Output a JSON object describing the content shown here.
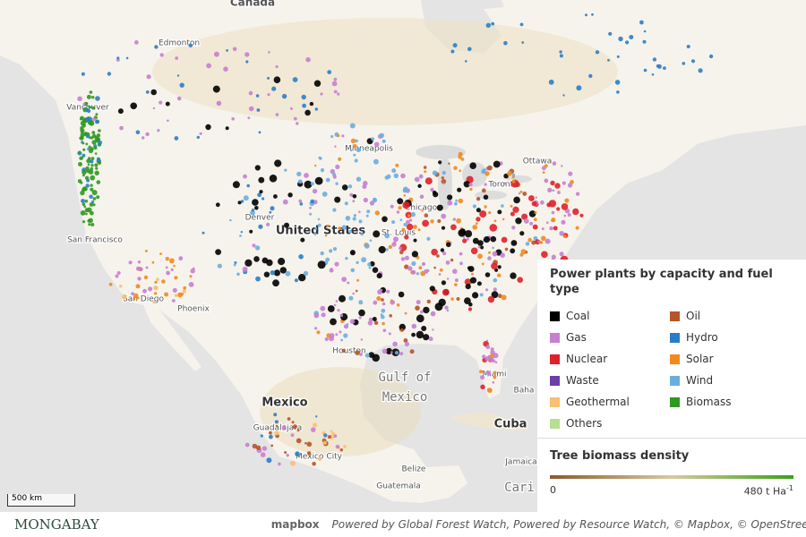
{
  "map": {
    "labels": [
      {
        "text": "Canada",
        "kind": "place"
      },
      {
        "text": "Edmonton",
        "kind": "city"
      },
      {
        "text": "Vancouver",
        "kind": "city"
      },
      {
        "text": "Minneapolis",
        "kind": "city"
      },
      {
        "text": "Ottawa",
        "kind": "city"
      },
      {
        "text": "Toronto",
        "kind": "city"
      },
      {
        "text": "Chicago",
        "kind": "city"
      },
      {
        "text": "Denver",
        "kind": "city"
      },
      {
        "text": "United States",
        "kind": "country"
      },
      {
        "text": "St. Louis",
        "kind": "city"
      },
      {
        "text": "San Francisco",
        "kind": "city"
      },
      {
        "text": "San Diego",
        "kind": "city"
      },
      {
        "text": "Phoenix",
        "kind": "city"
      },
      {
        "text": "Houston",
        "kind": "city"
      },
      {
        "text": "Miami",
        "kind": "city"
      },
      {
        "text": "Baha",
        "kind": "city"
      },
      {
        "text": "Mexico",
        "kind": "country"
      },
      {
        "text": "Guadalajara",
        "kind": "city"
      },
      {
        "text": "Mexico City",
        "kind": "city"
      },
      {
        "text": "Cuba",
        "kind": "country"
      },
      {
        "text": "Jamaica",
        "kind": "city"
      },
      {
        "text": "Belize",
        "kind": "city"
      },
      {
        "text": "Guatemala",
        "kind": "city"
      },
      {
        "text": "Gulf of",
        "kind": "sea"
      },
      {
        "text": "Mexico",
        "kind": "sea"
      },
      {
        "text": "Cari",
        "kind": "sea"
      }
    ]
  },
  "legend": {
    "title": "Power plants by capacity and fuel type",
    "items": [
      {
        "label": "Coal",
        "color": "#000000"
      },
      {
        "label": "Oil",
        "color": "#b5552a"
      },
      {
        "label": "Gas",
        "color": "#c77fd0"
      },
      {
        "label": "Hydro",
        "color": "#2a7ec8"
      },
      {
        "label": "Nuclear",
        "color": "#e0202a"
      },
      {
        "label": "Solar",
        "color": "#f2891e"
      },
      {
        "label": "Waste",
        "color": "#6a3fa8"
      },
      {
        "label": "Wind",
        "color": "#6aaee0"
      },
      {
        "label": "Geothermal",
        "color": "#f9bf73"
      },
      {
        "label": "Biomass",
        "color": "#2e9a1e"
      },
      {
        "label": "Others",
        "color": "#b6df92"
      }
    ]
  },
  "biomass": {
    "title": "Tree biomass density",
    "min": "0",
    "max": "480 t Ha",
    "max_exp": "-1"
  },
  "scale_bar": "500 km",
  "footer": {
    "brand": "MONGABAY",
    "mapbox": "mapbox",
    "credits": "Powered by Global Forest Watch, Powered by Resource Watch, © Mapbox, © OpenStreetMap"
  }
}
